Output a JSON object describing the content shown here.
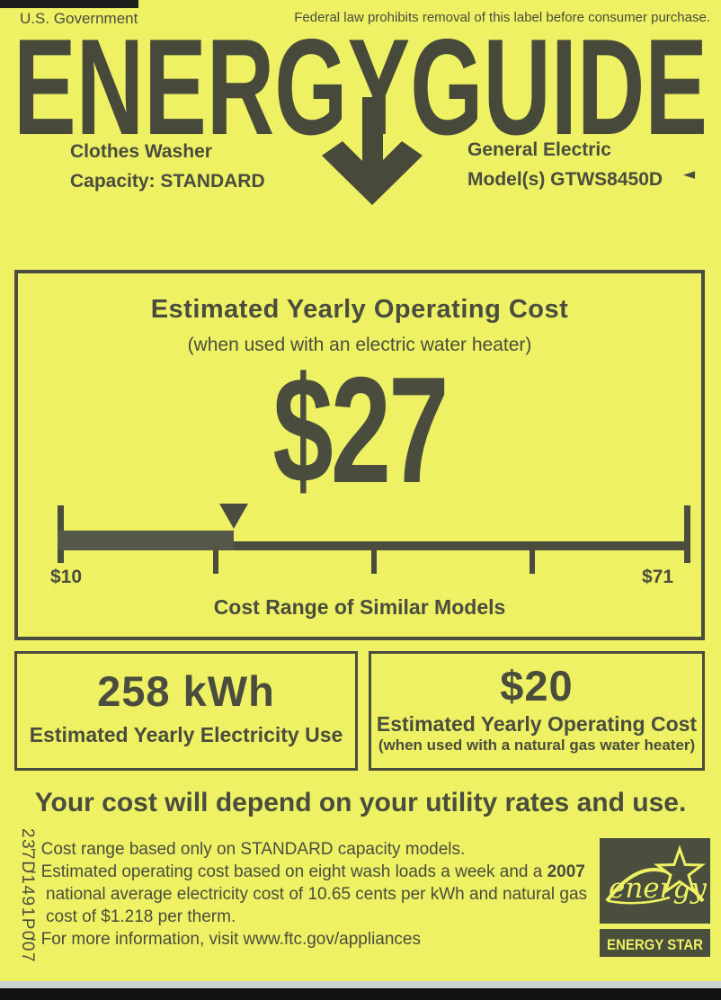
{
  "page": {
    "background_color": "#eef163",
    "ink_color": "#4a4d3e"
  },
  "header": {
    "left": "U.S. Government",
    "right": "Federal law prohibits removal of this label before consumer purchase."
  },
  "logo": {
    "title": "ENERGYGUIDE"
  },
  "product": {
    "type": "Clothes Washer",
    "capacity": "Capacity: STANDARD",
    "manufacturer": "General Electric",
    "model": "Model(s) GTWS8450D",
    "pointer_glyph": "◄"
  },
  "main_panel": {
    "title": "Estimated Yearly Operating Cost",
    "subtitle": "(when used with an electric water heater)",
    "amount": "$27",
    "scale": {
      "min_label": "$10",
      "max_label": "$71",
      "min_value": 10,
      "max_value": 71,
      "marker_value": 27,
      "caption": "Cost Range of Similar Models"
    }
  },
  "electricity_panel": {
    "value": "258 kWh",
    "label": "Estimated Yearly Electricity Use"
  },
  "gas_panel": {
    "value": "$20",
    "label": "Estimated Yearly Operating Cost",
    "sublabel": "(when used with a natural gas water heater)"
  },
  "usage_note": "Your cost will depend on your utility rates and use.",
  "part_number": "237D1491P007",
  "footnotes": {
    "bullet": "-",
    "items": [
      {
        "text": "Cost range based only on STANDARD capacity models."
      },
      {
        "text_before_year": "Estimated operating cost based on eight wash loads a week and a ",
        "year": "2007",
        "text_after_year": " national average electricity cost of 10.65 cents per kWh and natural gas cost of $1.218 per therm."
      },
      {
        "text": "For more information, visit www.ftc.gov/appliances"
      }
    ]
  },
  "energy_star": {
    "script_text": "energy",
    "label": "ENERGY STAR"
  }
}
